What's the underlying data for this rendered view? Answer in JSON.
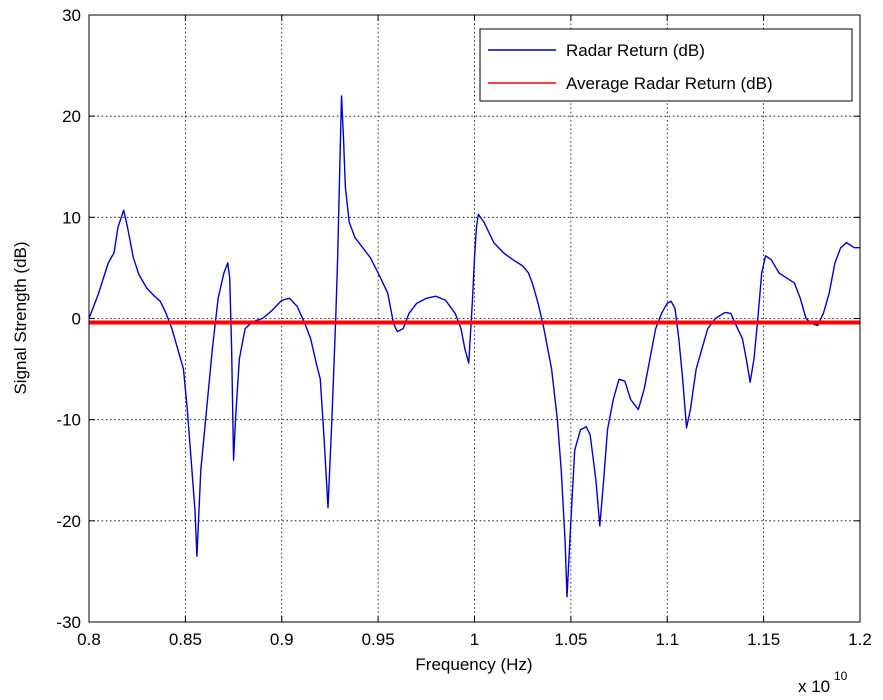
{
  "chart_data": {
    "type": "line",
    "title": "",
    "xlabel": "Frequency (Hz)",
    "ylabel": "Signal Strength (dB)",
    "x_exponent_label": "x 10",
    "x_exponent_power": "10",
    "xlim": [
      0.8,
      1.2
    ],
    "ylim": [
      -30,
      30
    ],
    "x_ticks": [
      0.8,
      0.85,
      0.9,
      0.95,
      1.0,
      1.05,
      1.1,
      1.15,
      1.2
    ],
    "x_tick_labels": [
      "0.8",
      "0.85",
      "0.9",
      "0.95",
      "1",
      "1.05",
      "1.1",
      "1.15",
      "1.2"
    ],
    "y_ticks": [
      -30,
      -20,
      -10,
      0,
      10,
      20,
      30
    ],
    "y_tick_labels": [
      "-30",
      "-20",
      "-10",
      "0",
      "10",
      "20",
      "30"
    ],
    "grid": true,
    "legend_position": "top-right",
    "series": [
      {
        "name": "Radar Return (dB)",
        "color": "#0000cc",
        "points": [
          [
            0.8,
            0.0
          ],
          [
            0.805,
            2.5
          ],
          [
            0.81,
            5.5
          ],
          [
            0.813,
            6.5
          ],
          [
            0.815,
            9.0
          ],
          [
            0.818,
            10.7
          ],
          [
            0.82,
            9.0
          ],
          [
            0.823,
            6.0
          ],
          [
            0.826,
            4.3
          ],
          [
            0.83,
            3.0
          ],
          [
            0.834,
            2.2
          ],
          [
            0.837,
            1.7
          ],
          [
            0.84,
            0.5
          ],
          [
            0.843,
            -1.0
          ],
          [
            0.846,
            -3.0
          ],
          [
            0.849,
            -5.0
          ],
          [
            0.851,
            -9.0
          ],
          [
            0.853,
            -14.0
          ],
          [
            0.855,
            -19.0
          ],
          [
            0.856,
            -23.5
          ],
          [
            0.858,
            -15.0
          ],
          [
            0.861,
            -9.0
          ],
          [
            0.864,
            -3.0
          ],
          [
            0.867,
            2.0
          ],
          [
            0.87,
            4.5
          ],
          [
            0.872,
            5.5
          ],
          [
            0.873,
            4.0
          ],
          [
            0.874,
            -3.0
          ],
          [
            0.875,
            -14.0
          ],
          [
            0.876,
            -10.0
          ],
          [
            0.878,
            -4.0
          ],
          [
            0.881,
            -1.0
          ],
          [
            0.885,
            -0.3
          ],
          [
            0.89,
            0.0
          ],
          [
            0.895,
            0.8
          ],
          [
            0.9,
            1.8
          ],
          [
            0.904,
            2.0
          ],
          [
            0.908,
            1.2
          ],
          [
            0.912,
            -0.5
          ],
          [
            0.915,
            -2.0
          ],
          [
            0.918,
            -4.5
          ],
          [
            0.92,
            -6.0
          ],
          [
            0.922,
            -12.0
          ],
          [
            0.924,
            -18.7
          ],
          [
            0.926,
            -10.0
          ],
          [
            0.928,
            0.0
          ],
          [
            0.929,
            6.0
          ],
          [
            0.93,
            14.0
          ],
          [
            0.931,
            22.0
          ],
          [
            0.932,
            18.0
          ],
          [
            0.933,
            13.0
          ],
          [
            0.935,
            9.5
          ],
          [
            0.938,
            8.0
          ],
          [
            0.942,
            7.0
          ],
          [
            0.946,
            6.0
          ],
          [
            0.95,
            4.5
          ],
          [
            0.955,
            2.5
          ],
          [
            0.958,
            -0.5
          ],
          [
            0.96,
            -1.3
          ],
          [
            0.963,
            -1.0
          ],
          [
            0.966,
            0.5
          ],
          [
            0.97,
            1.5
          ],
          [
            0.975,
            2.0
          ],
          [
            0.98,
            2.2
          ],
          [
            0.985,
            1.8
          ],
          [
            0.99,
            0.5
          ],
          [
            0.993,
            -1.0
          ],
          [
            0.995,
            -3.0
          ],
          [
            0.997,
            -4.4
          ],
          [
            0.999,
            2.0
          ],
          [
            1.0,
            6.0
          ],
          [
            1.001,
            9.0
          ],
          [
            1.002,
            10.3
          ],
          [
            1.005,
            9.5
          ],
          [
            1.01,
            7.5
          ],
          [
            1.015,
            6.5
          ],
          [
            1.02,
            5.8
          ],
          [
            1.025,
            5.2
          ],
          [
            1.028,
            4.5
          ],
          [
            1.03,
            3.5
          ],
          [
            1.033,
            1.5
          ],
          [
            1.036,
            -1.0
          ],
          [
            1.04,
            -5.0
          ],
          [
            1.043,
            -10.0
          ],
          [
            1.045,
            -15.0
          ],
          [
            1.047,
            -22.0
          ],
          [
            1.048,
            -27.5
          ],
          [
            1.05,
            -20.0
          ],
          [
            1.052,
            -13.0
          ],
          [
            1.055,
            -11.0
          ],
          [
            1.058,
            -10.7
          ],
          [
            1.06,
            -11.5
          ],
          [
            1.063,
            -16.0
          ],
          [
            1.065,
            -20.5
          ],
          [
            1.067,
            -16.0
          ],
          [
            1.069,
            -11.0
          ],
          [
            1.072,
            -8.0
          ],
          [
            1.075,
            -6.0
          ],
          [
            1.078,
            -6.2
          ],
          [
            1.081,
            -8.0
          ],
          [
            1.085,
            -9.0
          ],
          [
            1.088,
            -7.0
          ],
          [
            1.091,
            -4.0
          ],
          [
            1.094,
            -1.0
          ],
          [
            1.097,
            0.5
          ],
          [
            1.1,
            1.5
          ],
          [
            1.102,
            1.7
          ],
          [
            1.104,
            1.0
          ],
          [
            1.106,
            -2.0
          ],
          [
            1.108,
            -6.0
          ],
          [
            1.11,
            -10.8
          ],
          [
            1.112,
            -9.0
          ],
          [
            1.115,
            -5.0
          ],
          [
            1.118,
            -3.0
          ],
          [
            1.121,
            -1.0
          ],
          [
            1.125,
            0.0
          ],
          [
            1.13,
            0.6
          ],
          [
            1.133,
            0.5
          ],
          [
            1.136,
            -0.8
          ],
          [
            1.139,
            -2.0
          ],
          [
            1.141,
            -4.0
          ],
          [
            1.143,
            -6.3
          ],
          [
            1.145,
            -4.0
          ],
          [
            1.147,
            0.0
          ],
          [
            1.149,
            4.5
          ],
          [
            1.151,
            6.2
          ],
          [
            1.154,
            5.8
          ],
          [
            1.158,
            4.5
          ],
          [
            1.162,
            4.0
          ],
          [
            1.166,
            3.5
          ],
          [
            1.169,
            2.0
          ],
          [
            1.172,
            0.0
          ],
          [
            1.175,
            -0.5
          ],
          [
            1.178,
            -0.7
          ],
          [
            1.181,
            0.5
          ],
          [
            1.184,
            2.5
          ],
          [
            1.187,
            5.5
          ],
          [
            1.19,
            7.0
          ],
          [
            1.193,
            7.5
          ],
          [
            1.197,
            7.0
          ],
          [
            1.2,
            7.0
          ]
        ]
      },
      {
        "name": "Average Radar Return (dB)",
        "color": "#ff0000",
        "points": [
          [
            0.8,
            -0.4
          ],
          [
            1.2,
            -0.4
          ]
        ]
      }
    ]
  }
}
